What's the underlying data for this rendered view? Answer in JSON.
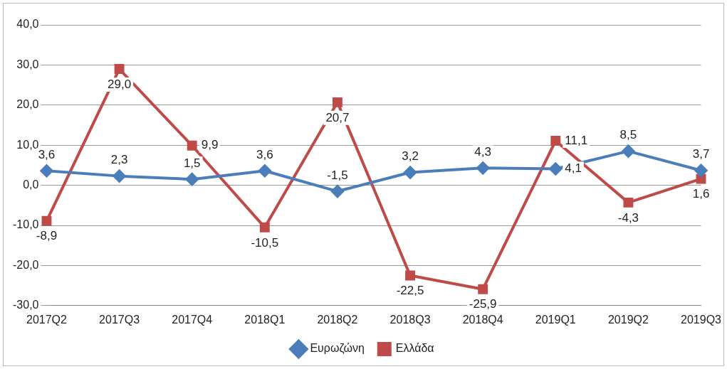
{
  "chart_data": {
    "type": "line",
    "categories": [
      "2017Q2",
      "2017Q3",
      "2017Q4",
      "2018Q1",
      "2018Q2",
      "2018Q3",
      "2018Q4",
      "2019Q1",
      "2019Q2",
      "2019Q3"
    ],
    "series": [
      {
        "name": "Ευρωζώνη",
        "color": "#4a7ebb",
        "marker": "diamond",
        "values": [
          3.6,
          2.3,
          1.5,
          3.6,
          -1.5,
          3.2,
          4.3,
          4.1,
          8.5,
          3.7
        ],
        "value_labels": [
          "3,6",
          "2,3",
          "1,5",
          "3,6",
          "-1,5",
          "3,2",
          "4,3",
          "4,1",
          "8,5",
          "3,7"
        ]
      },
      {
        "name": "Ελλάδα",
        "color": "#be4b48",
        "marker": "square",
        "values": [
          -8.9,
          29.0,
          9.9,
          -10.5,
          20.7,
          -22.5,
          -25.9,
          11.1,
          -4.3,
          1.6
        ],
        "value_labels": [
          "-8,9",
          "29,0",
          "9,9",
          "-10,5",
          "20,7",
          "-22,5",
          "-25,9",
          "11,1",
          "-4,3",
          "1,6"
        ]
      }
    ],
    "ylim": [
      -30,
      40
    ],
    "yticks": [
      {
        "value": -30,
        "label": "-30,0"
      },
      {
        "value": -20,
        "label": "-20,0"
      },
      {
        "value": -10,
        "label": "-10,0"
      },
      {
        "value": 0,
        "label": "0,0"
      },
      {
        "value": 10,
        "label": "10,0"
      },
      {
        "value": 20,
        "label": "20,0"
      },
      {
        "value": 30,
        "label": "30,0"
      },
      {
        "value": 40,
        "label": "40,0"
      }
    ],
    "grid": "y",
    "legend": "bottom",
    "line_style": "solid"
  }
}
